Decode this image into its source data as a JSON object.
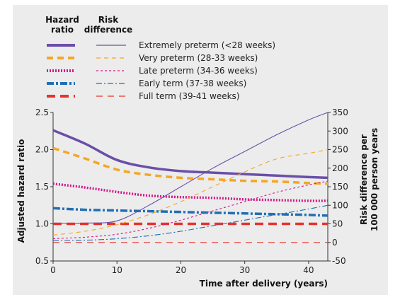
{
  "chart_data": {
    "type": "line",
    "legend": {
      "header_hazard": "Hazard ratio",
      "header_risk": "Risk difference",
      "placement": "top"
    },
    "xlabel": "Time after delivery (years)",
    "ylabel_left": "Adjusted hazard ratio",
    "ylabel_right": "Risk difference per 100 000 person years",
    "xlim": [
      0,
      43
    ],
    "ylim_left": [
      0.5,
      2.5
    ],
    "ylim_right": [
      -50,
      350
    ],
    "x_ticks": [
      "0",
      "10",
      "20",
      "30",
      "40"
    ],
    "yleft_ticks": [
      "0.5",
      "1.0",
      "1.5",
      "2.0",
      "2.5"
    ],
    "yright_ticks": [
      "-50",
      "0",
      "50",
      "100",
      "150",
      "200",
      "250",
      "300",
      "350"
    ],
    "grid": false,
    "x": [
      0,
      5,
      10,
      15,
      20,
      25,
      30,
      35,
      40,
      43
    ],
    "series": [
      {
        "name": "Extremely preterm (<28 weeks)",
        "color": "#6a4fa8",
        "dash": "solid",
        "hazard_ratio": [
          2.26,
          2.08,
          1.86,
          1.76,
          1.71,
          1.69,
          1.67,
          1.65,
          1.63,
          1.62
        ],
        "risk_difference": [
          52,
          52,
          58,
          100,
          150,
          200,
          245,
          290,
          330,
          350
        ]
      },
      {
        "name": "Very preterm (28-33 weeks)",
        "color": "#f5a623",
        "dash": "dashed",
        "hazard_ratio": [
          2.02,
          1.88,
          1.73,
          1.66,
          1.62,
          1.6,
          1.58,
          1.57,
          1.55,
          1.54
        ],
        "risk_difference": [
          20,
          30,
          48,
          75,
          110,
          150,
          190,
          225,
          240,
          250
        ]
      },
      {
        "name": "Late preterm (34-36 weeks)",
        "color": "#d6168a",
        "dash": "dotted",
        "hazard_ratio": [
          1.54,
          1.49,
          1.43,
          1.38,
          1.36,
          1.35,
          1.33,
          1.32,
          1.31,
          1.31
        ],
        "risk_difference": [
          10,
          14,
          22,
          38,
          60,
          85,
          110,
          135,
          155,
          165
        ]
      },
      {
        "name": "Early term (37-38 weeks)",
        "color": "#1f6fb5",
        "dash": "dashdot",
        "hazard_ratio": [
          1.21,
          1.19,
          1.18,
          1.17,
          1.16,
          1.15,
          1.14,
          1.13,
          1.12,
          1.11
        ],
        "risk_difference": [
          5,
          6,
          10,
          18,
          30,
          45,
          60,
          75,
          90,
          100
        ]
      },
      {
        "name": "Full term (39-41 weeks)",
        "color": "#e8322c",
        "dash": "longdash",
        "hazard_ratio": [
          1.0,
          1.0,
          1.0,
          1.0,
          1.0,
          1.0,
          1.0,
          1.0,
          1.0,
          1.0
        ],
        "risk_difference": [
          0,
          0,
          0,
          0,
          0,
          0,
          0,
          0,
          0,
          0
        ]
      }
    ]
  }
}
